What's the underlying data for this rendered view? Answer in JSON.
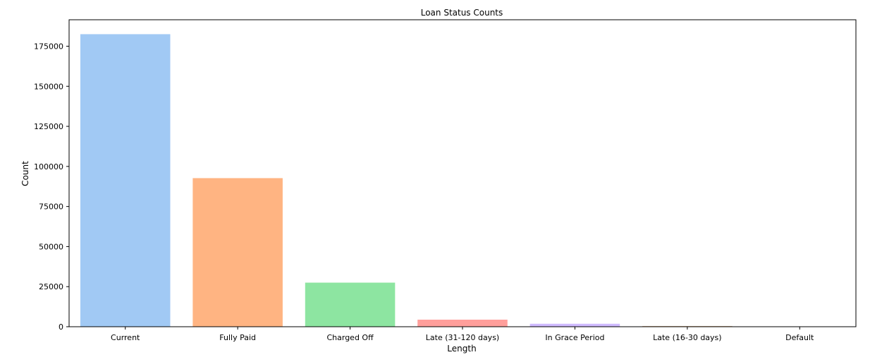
{
  "chart_data": {
    "type": "bar",
    "title": "Loan Status Counts",
    "xlabel": "Length",
    "ylabel": "Count",
    "categories": [
      "Current",
      "Fully Paid",
      "Charged Off",
      "Late (31-120 days)",
      "In Grace Period",
      "Late (16-30 days)",
      "Default"
    ],
    "values": [
      182500,
      92700,
      27500,
      4400,
      1850,
      450,
      50
    ],
    "colors": [
      "#a1c9f4",
      "#ffb482",
      "#8de5a1",
      "#ff9f9b",
      "#d0bbff",
      "#debb9b",
      "#fab0e4"
    ],
    "ylim": [
      0,
      191500
    ],
    "yticks": [
      0,
      25000,
      50000,
      75000,
      100000,
      125000,
      150000,
      175000
    ],
    "ytick_labels": [
      "0",
      "25000",
      "50000",
      "75000",
      "100000",
      "125000",
      "150000",
      "175000"
    ],
    "grid": false,
    "legend": false
  }
}
